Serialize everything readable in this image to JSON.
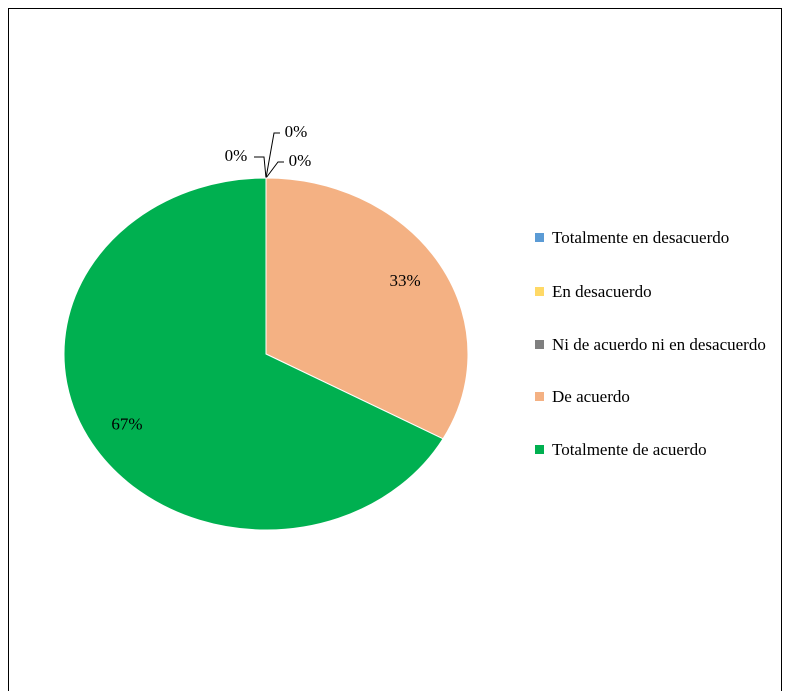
{
  "chart_data": {
    "type": "pie",
    "categories": [
      "Totalmente en desacuerdo",
      "En desacuerdo",
      "Ni de acuerdo ni en desacuerdo",
      "De acuerdo",
      "Totalmente de acuerdo"
    ],
    "values": [
      0,
      0,
      0,
      33,
      67
    ],
    "value_labels": [
      "0%",
      "0%",
      "0%",
      "33%",
      "67%"
    ],
    "colors": [
      "#5b9bd5",
      "#ffd966",
      "#7f7f7f",
      "#f4b183",
      "#00b050"
    ],
    "legend": "right"
  }
}
